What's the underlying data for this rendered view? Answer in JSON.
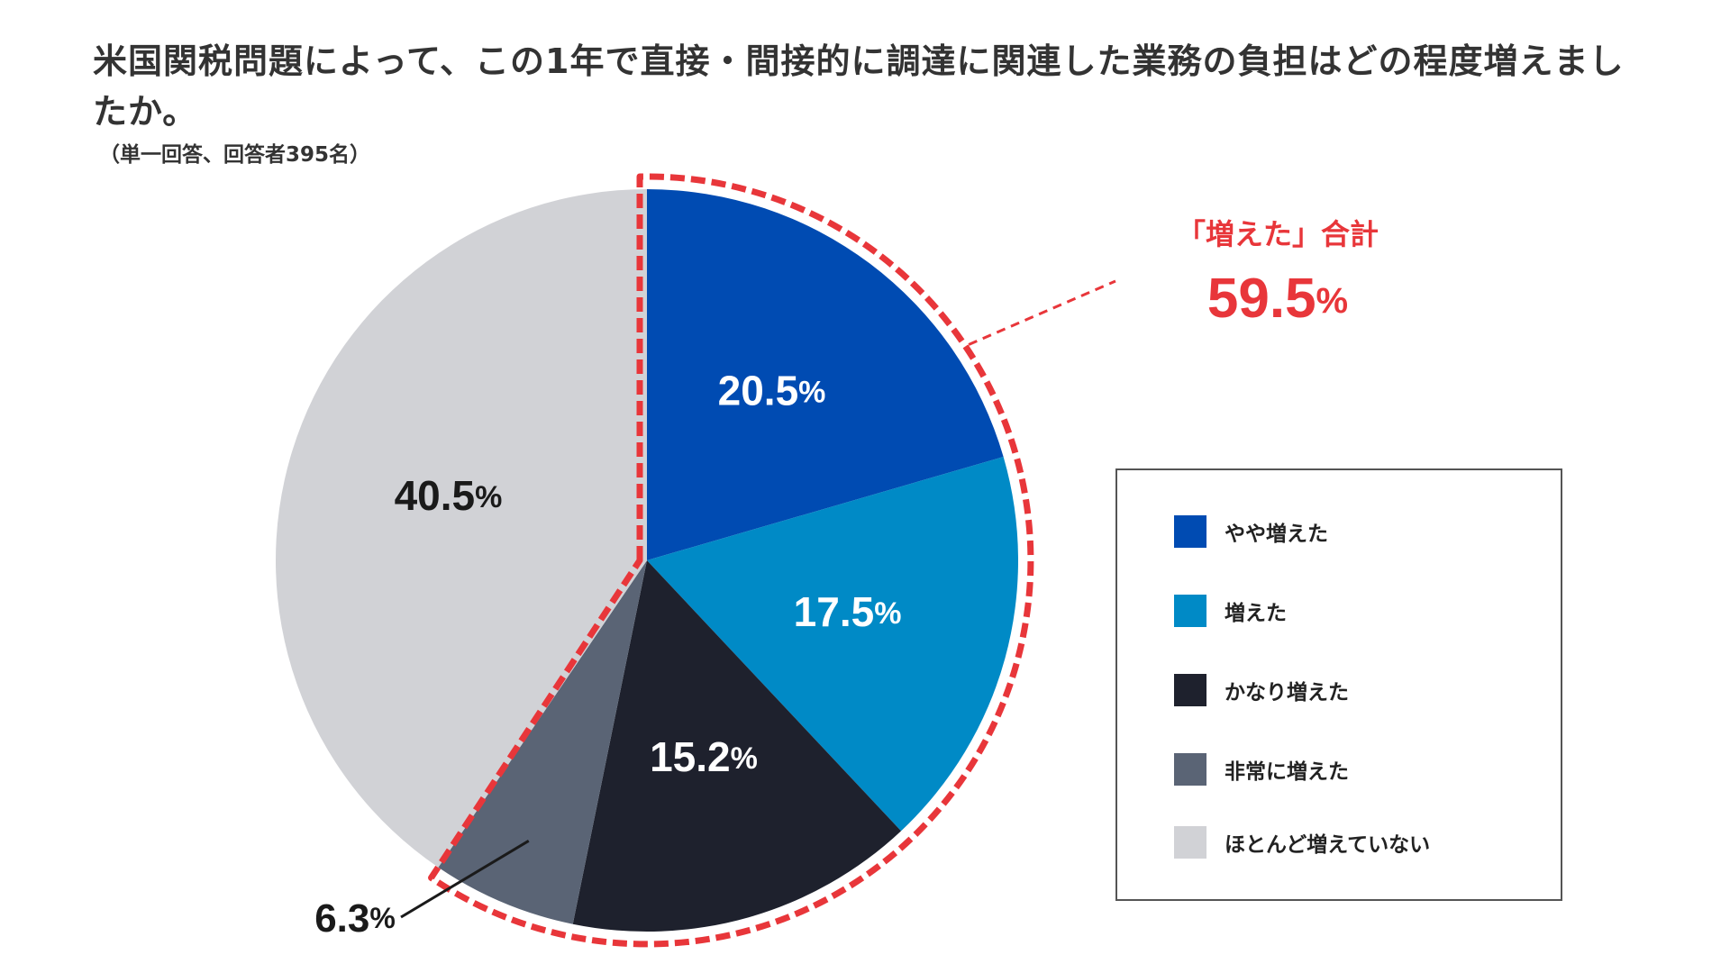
{
  "title": "米国関税問題によって、この1年で直接・間接的に調達に関連した業務の負担はどの程度増えましたか。",
  "note": "（単一回答、回答者395名）",
  "colors": {
    "yaya": "#004bb2",
    "fueta": "#008ac6",
    "kanari": "#1e212d",
    "hijou": "#5a6475",
    "hotondo": "#d1d2d6",
    "highlight": "#e8363a"
  },
  "chart_data": {
    "type": "pie",
    "title": "米国関税問題によって、この1年で直接・間接的に調達に関連した業務の負担はどの程度増えましたか。",
    "unit": "%",
    "start": "top (12 o'clock), clockwise",
    "slices": [
      {
        "key": "yaya",
        "name": "やや増えた",
        "value": 20.5,
        "label": "20.5",
        "color": "#004bb2",
        "labelColor": "#ffffff"
      },
      {
        "key": "fueta",
        "name": "増えた",
        "value": 17.5,
        "label": "17.5",
        "color": "#008ac6",
        "labelColor": "#ffffff"
      },
      {
        "key": "kanari",
        "name": "かなり増えた",
        "value": 15.2,
        "label": "15.2",
        "color": "#1e212d",
        "labelColor": "#ffffff"
      },
      {
        "key": "hijou",
        "name": "非常に増えた",
        "value": 6.3,
        "label": "6.3",
        "color": "#5a6475",
        "labelColor": "#1a1a1a"
      },
      {
        "key": "hotondo",
        "name": "ほとんど増えていない",
        "value": 40.5,
        "label": "40.5",
        "color": "#d1d2d6",
        "labelColor": "#1a1a1a"
      }
    ],
    "highlight": {
      "label": "「増えた」合計",
      "value": 59.5,
      "value_text": "59.5",
      "unit": "%",
      "covers": [
        "yaya",
        "fueta",
        "kanari",
        "hijou"
      ]
    },
    "legend": [
      "やや増えた",
      "増えた",
      "かなり増えた",
      "非常に増えた",
      "ほとんど増えていない"
    ],
    "legend_position": "right"
  }
}
